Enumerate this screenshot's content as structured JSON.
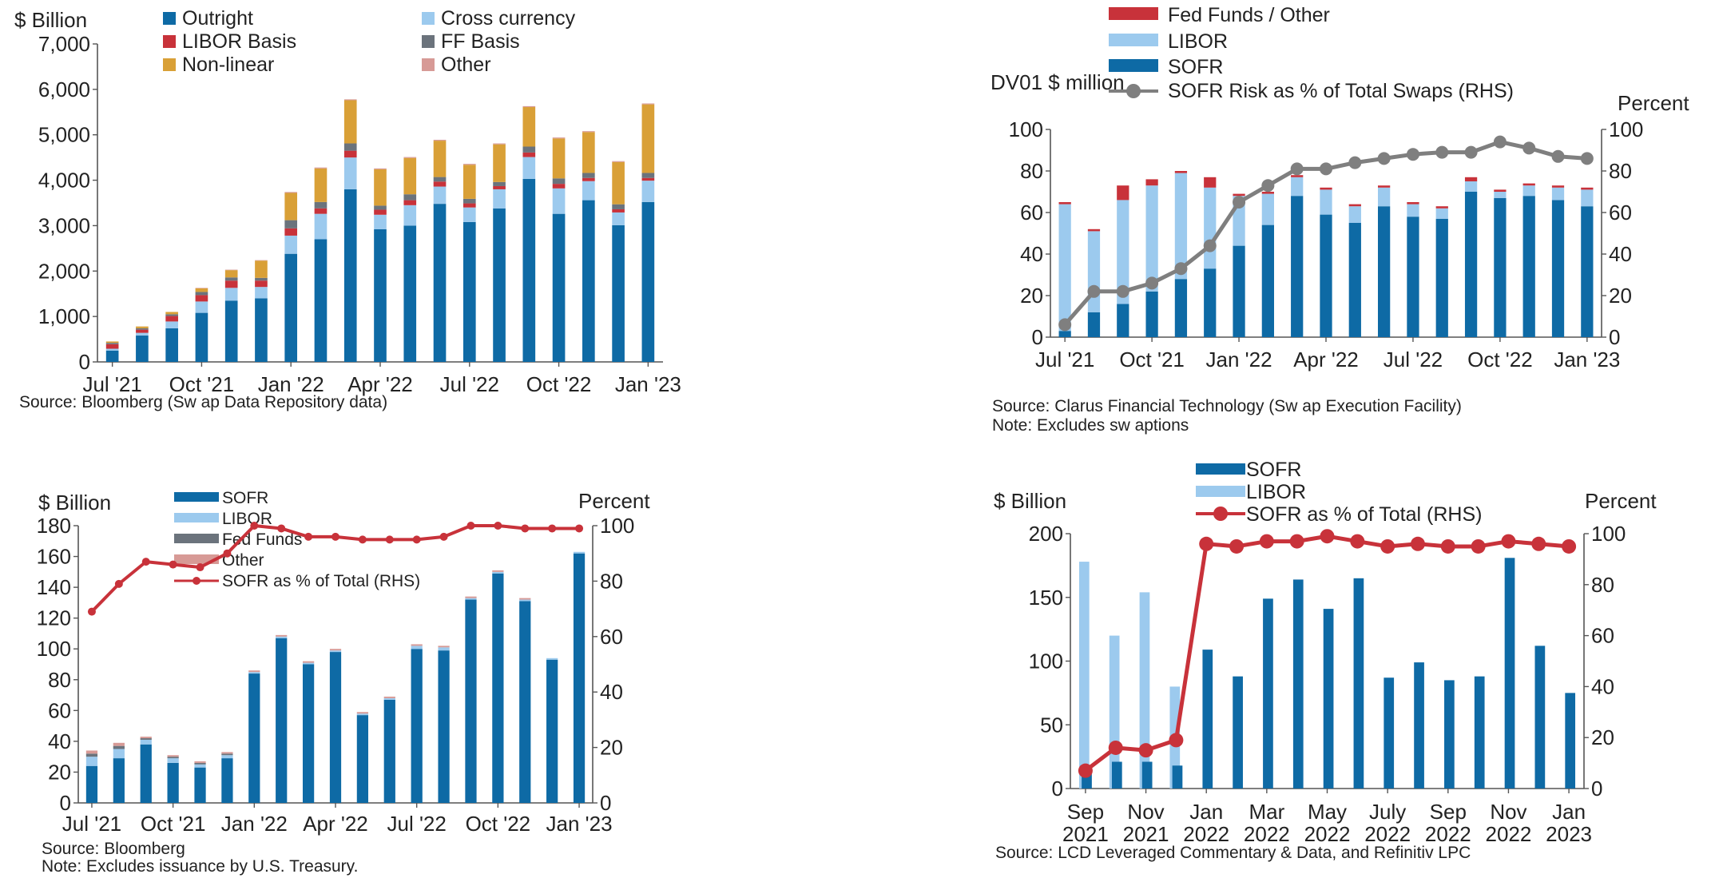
{
  "colors": {
    "sofr": "#0e6aa5",
    "libor": "#9ccaee",
    "red": "#c8323a",
    "gray": "#6b737c",
    "orange": "#d9a037",
    "other": "#d79a96",
    "line_gray": "#7f7f7f",
    "line_red": "#c8323a"
  },
  "chart_data": [
    {
      "type": "bar",
      "stacked": true,
      "y_unit": "$ Billion",
      "ylim": [
        0,
        7000
      ],
      "yticks": [
        "0",
        "1,000",
        "2,000",
        "3,000",
        "4,000",
        "5,000",
        "6,000",
        "7,000"
      ],
      "categories": [
        "Jul '21",
        "Aug '21",
        "Sep '21",
        "Oct '21",
        "Nov '21",
        "Dec '21",
        "Jan '22",
        "Feb '22",
        "Mar '22",
        "Apr '22",
        "May '22",
        "Jun '22",
        "Jul '22",
        "Aug '22",
        "Sep '22",
        "Oct '22",
        "Nov '22",
        "Dec '22",
        "Jan '23"
      ],
      "xtick_labels": [
        "Jul '21",
        "Oct '21",
        "Jan '22",
        "Apr '22",
        "Jul '22",
        "Oct '22",
        "Jan '23"
      ],
      "series": [
        {
          "name": "Outright",
          "color": "#0e6aa5",
          "values": [
            250,
            580,
            740,
            1080,
            1350,
            1400,
            2380,
            2700,
            3800,
            2920,
            3000,
            3480,
            3080,
            3380,
            4030,
            3260,
            3560,
            3010,
            3520
          ]
        },
        {
          "name": "Cross currency",
          "color": "#9ccaee",
          "values": [
            40,
            60,
            150,
            250,
            280,
            250,
            400,
            560,
            700,
            320,
            450,
            380,
            320,
            420,
            480,
            560,
            420,
            280,
            470
          ]
        },
        {
          "name": "LIBOR Basis",
          "color": "#c8323a",
          "values": [
            100,
            70,
            120,
            140,
            160,
            140,
            160,
            120,
            150,
            110,
            110,
            110,
            90,
            70,
            100,
            100,
            70,
            70,
            60
          ]
        },
        {
          "name": "FF Basis",
          "color": "#6b737c",
          "values": [
            30,
            30,
            40,
            70,
            70,
            60,
            180,
            140,
            160,
            90,
            130,
            100,
            100,
            90,
            130,
            120,
            110,
            110,
            110
          ]
        },
        {
          "name": "Non-linear",
          "color": "#d9a037",
          "values": [
            30,
            40,
            50,
            80,
            160,
            380,
            600,
            740,
            950,
            800,
            800,
            800,
            750,
            830,
            870,
            880,
            900,
            930,
            1510
          ]
        },
        {
          "name": "Other",
          "color": "#d79a96",
          "values": [
            0,
            0,
            0,
            10,
            10,
            10,
            20,
            20,
            20,
            20,
            20,
            20,
            20,
            20,
            20,
            20,
            20,
            20,
            20
          ]
        }
      ],
      "source": "Source: Bloomberg (Sw ap Data Repository data)"
    },
    {
      "type": "bar",
      "stacked": true,
      "y_unit": "DV01 $ million",
      "y2_unit": "Percent",
      "ylim": [
        0,
        100
      ],
      "y2lim": [
        0,
        100
      ],
      "yticks": [
        "0",
        "20",
        "40",
        "60",
        "80",
        "100"
      ],
      "categories": [
        "Jul '21",
        "Aug '21",
        "Sep '21",
        "Oct '21",
        "Nov '21",
        "Dec '21",
        "Jan '22",
        "Feb '22",
        "Mar '22",
        "Apr '22",
        "May '22",
        "Jun '22",
        "Jul '22",
        "Aug '22",
        "Sep '22",
        "Oct '22",
        "Nov '22",
        "Dec '22",
        "Jan '23"
      ],
      "xtick_labels": [
        "Jul '21",
        "Oct '21",
        "Jan '22",
        "Apr '22",
        "Jul '22",
        "Oct '22",
        "Jan '23"
      ],
      "series": [
        {
          "name": "SOFR",
          "color": "#0e6aa5",
          "values": [
            3,
            12,
            16,
            22,
            28,
            33,
            44,
            54,
            68,
            59,
            55,
            63,
            58,
            57,
            70,
            67,
            68,
            66,
            63
          ]
        },
        {
          "name": "LIBOR",
          "color": "#9ccaee",
          "values": [
            61,
            39,
            50,
            51,
            51,
            39,
            24,
            15,
            9,
            12,
            8,
            9,
            6,
            5,
            5,
            3,
            5,
            6,
            8
          ]
        },
        {
          "name": "Fed Funds / Other",
          "color": "#c8323a",
          "values": [
            1,
            1,
            7,
            3,
            1,
            5,
            1,
            1,
            1,
            1,
            1,
            1,
            1,
            1,
            2,
            1,
            1,
            1,
            1
          ]
        }
      ],
      "line": {
        "name": "SOFR Risk as % of Total Swaps (RHS)",
        "color": "#7f7f7f",
        "values": [
          6,
          22,
          22,
          26,
          33,
          44,
          65,
          73,
          81,
          81,
          84,
          86,
          88,
          89,
          89,
          94,
          91,
          87,
          86
        ]
      },
      "source": "Source: Clarus Financial Technology (Sw ap Execution Facility)",
      "note": "Note: Excludes sw aptions"
    },
    {
      "type": "bar",
      "stacked": true,
      "y_unit": "$ Billion",
      "y2_unit": "Percent",
      "ylim": [
        0,
        180
      ],
      "y2lim": [
        0,
        100
      ],
      "yticks": [
        "0",
        "20",
        "40",
        "60",
        "80",
        "100",
        "120",
        "140",
        "160",
        "180"
      ],
      "y2ticks": [
        "0",
        "20",
        "40",
        "60",
        "80",
        "100"
      ],
      "categories": [
        "Jul '21",
        "Aug '21",
        "Sep '21",
        "Oct '21",
        "Nov '21",
        "Dec '21",
        "Jan '22",
        "Feb '22",
        "Mar '22",
        "Apr '22",
        "May '22",
        "Jun '22",
        "Jul '22",
        "Aug '22",
        "Sep '22",
        "Oct '22",
        "Nov '22",
        "Dec '22",
        "Jan '23"
      ],
      "xtick_labels": [
        "Jul '21",
        "Oct '21",
        "Jan '22",
        "Apr '22",
        "Jul '22",
        "Oct '22",
        "Jan '23"
      ],
      "series": [
        {
          "name": "SOFR",
          "color": "#0e6aa5",
          "values": [
            24,
            29,
            38,
            26,
            23,
            29,
            84,
            107,
            90,
            98,
            57,
            67,
            100,
            99,
            132,
            149,
            131,
            93,
            162
          ]
        },
        {
          "name": "LIBOR",
          "color": "#9ccaee",
          "values": [
            6,
            6,
            3,
            3,
            2,
            2,
            1,
            1,
            1,
            1,
            1,
            1,
            2,
            2,
            1,
            1,
            1,
            1,
            1
          ]
        },
        {
          "name": "Fed Funds",
          "color": "#6b737c",
          "values": [
            2,
            2,
            1,
            1,
            1,
            1,
            0,
            0,
            0,
            0,
            0,
            0,
            0,
            0,
            0,
            0,
            0,
            0,
            0
          ]
        },
        {
          "name": "Other",
          "color": "#d79a96",
          "values": [
            2,
            2,
            1,
            1,
            1,
            1,
            1,
            1,
            1,
            1,
            1,
            1,
            1,
            1,
            1,
            1,
            1,
            0,
            0
          ]
        }
      ],
      "line": {
        "name": "SOFR as % of Total (RHS)",
        "color": "#c8323a",
        "values": [
          69,
          79,
          87,
          86,
          85,
          90,
          100,
          99,
          96,
          96,
          95,
          95,
          95,
          96,
          100,
          100,
          99,
          99,
          99
        ]
      },
      "source": "Source: Bloomberg",
      "note": "Note: Excludes issuance by U.S. Treasury."
    },
    {
      "type": "bar",
      "stacked": false,
      "y_unit": "$ Billion",
      "y2_unit": "Percent",
      "ylim": [
        0,
        200
      ],
      "y2lim": [
        0,
        100
      ],
      "yticks": [
        "0",
        "50",
        "100",
        "150",
        "200"
      ],
      "y2ticks": [
        "0",
        "20",
        "40",
        "60",
        "80",
        "100"
      ],
      "categories": [
        "Sep 2021",
        "Oct 2021",
        "Nov 2021",
        "Dec 2021",
        "Jan 2022",
        "Feb 2022",
        "Mar 2022",
        "Apr 2022",
        "May 2022",
        "Jun 2022",
        "Jul 2022",
        "Aug 2022",
        "Sep 2022",
        "Oct 2022",
        "Nov 2022",
        "Dec 2022",
        "Jan 2023"
      ],
      "xtick_top": [
        "Sep",
        "Nov",
        "Jan",
        "Mar",
        "May",
        "July",
        "Sep",
        "Nov",
        "Jan"
      ],
      "xtick_bottom": [
        "2021",
        "2021",
        "2022",
        "2022",
        "2022",
        "2022",
        "2022",
        "2022",
        "2023"
      ],
      "series": [
        {
          "name": "SOFR",
          "color": "#0e6aa5",
          "values": [
            12,
            21,
            21,
            18,
            109,
            88,
            149,
            164,
            141,
            165,
            87,
            99,
            85,
            88,
            181,
            112,
            75
          ]
        },
        {
          "name": "LIBOR",
          "color": "#9ccaee",
          "values": [
            178,
            120,
            154,
            80,
            0,
            0,
            0,
            0,
            0,
            0,
            0,
            0,
            0,
            0,
            0,
            0,
            0
          ]
        }
      ],
      "line": {
        "name": "SOFR as % of Total (RHS)",
        "color": "#c8323a",
        "values": [
          7,
          16,
          15,
          19,
          96,
          95,
          97,
          97,
          99,
          97,
          95,
          96,
          95,
          95,
          97,
          96,
          95
        ]
      },
      "source": "Source: LCD Leveraged Commentary & Data, and Refinitiv LPC"
    }
  ]
}
